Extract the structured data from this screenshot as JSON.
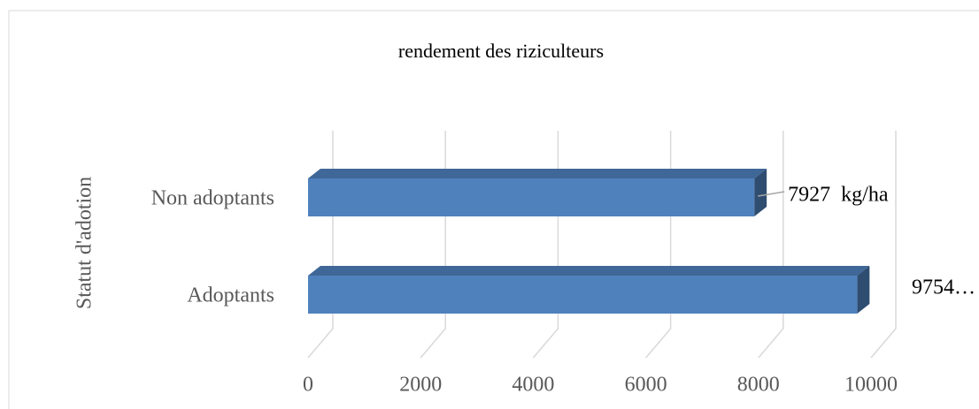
{
  "chart_data": {
    "type": "bar3d_horizontal",
    "title": "rendement des riziculteurs",
    "y_axis_label": "Statut d'adotion",
    "categories": [
      "Non adoptants",
      "Adoptants"
    ],
    "values": [
      7927,
      9754
    ],
    "value_labels": [
      "7927  kg/ha",
      "9754…"
    ],
    "color": "#4f81bd",
    "xlim": [
      0,
      10000
    ],
    "xticks": [
      0,
      2000,
      4000,
      6000,
      8000,
      10000
    ],
    "grid": true
  }
}
